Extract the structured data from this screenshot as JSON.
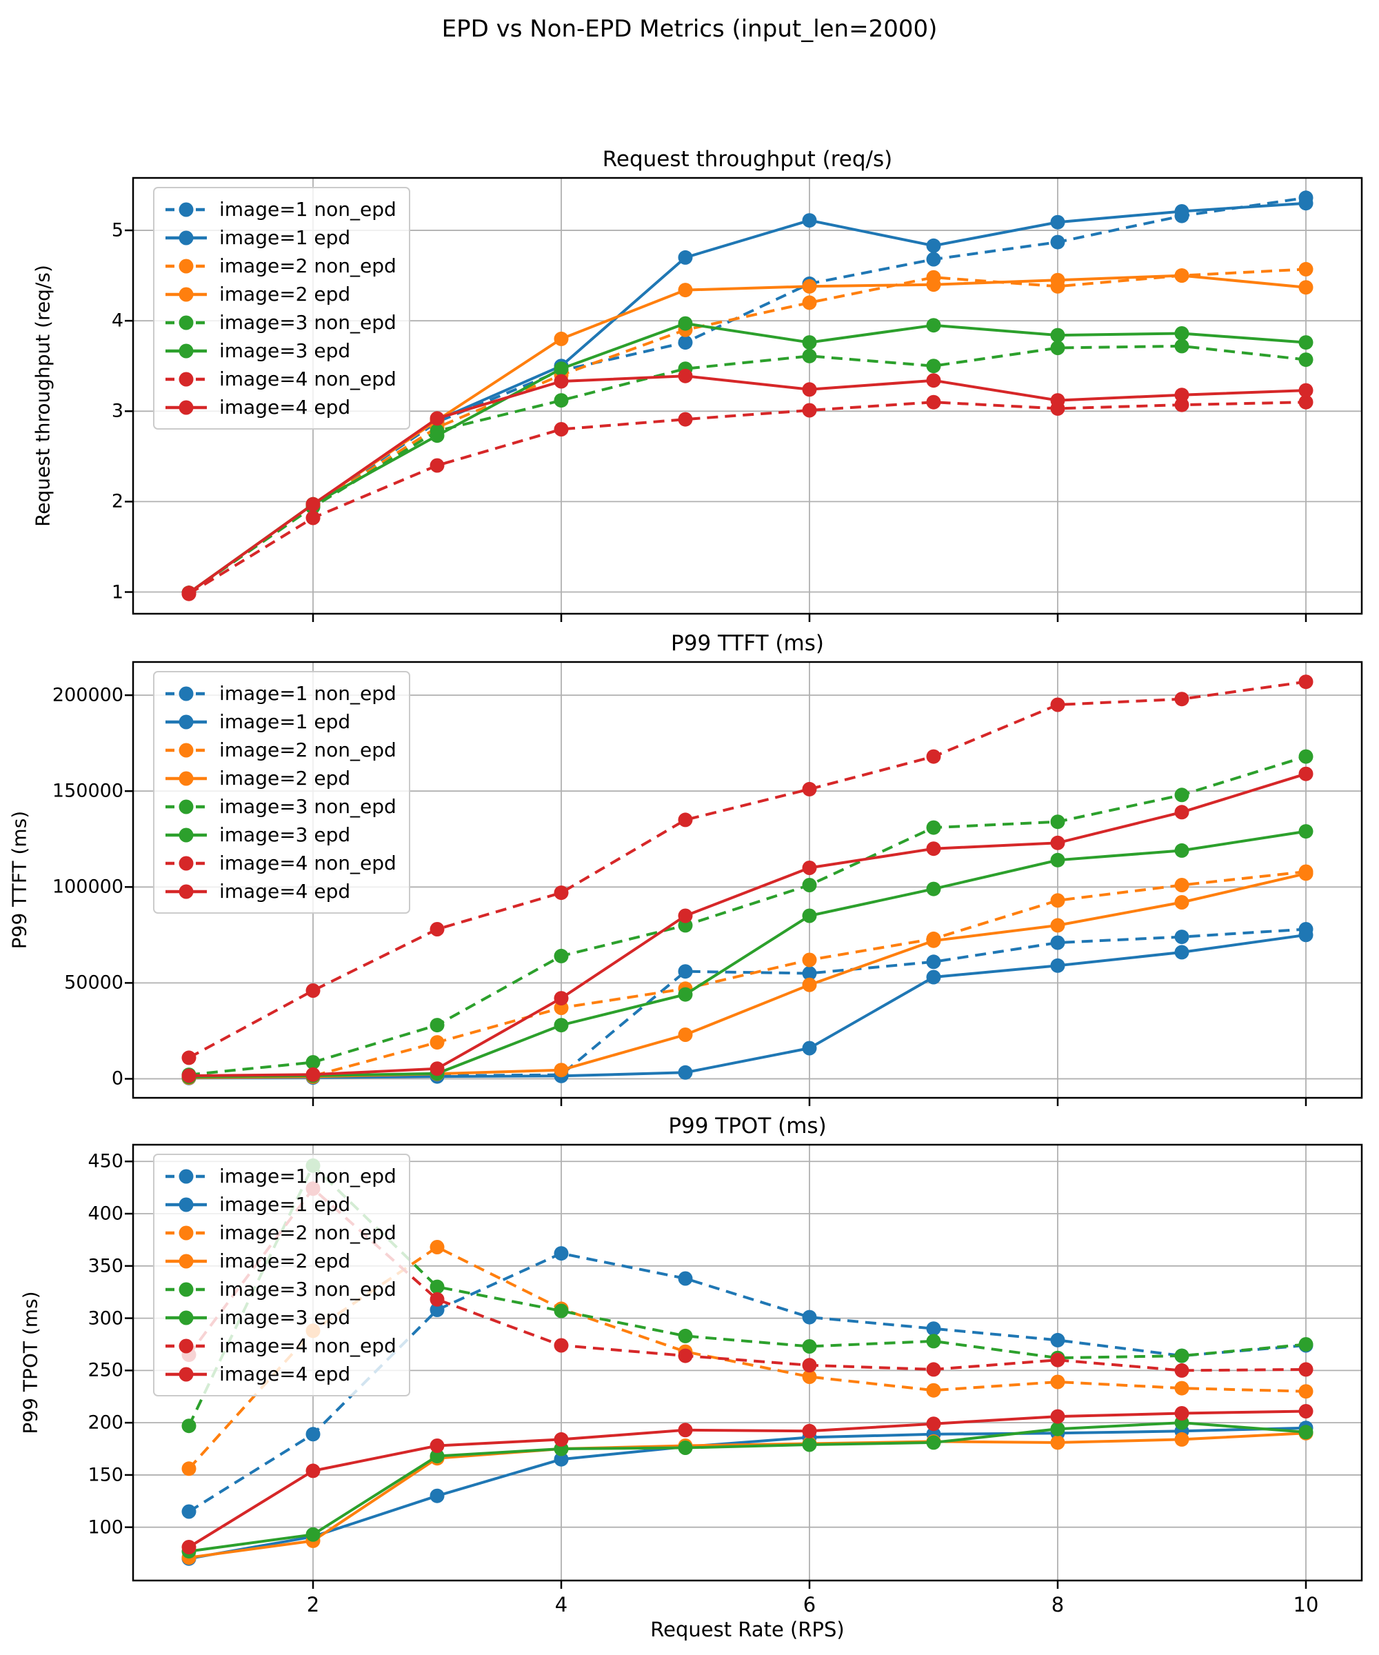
{
  "figure": {
    "suptitle": "EPD vs Non-EPD Metrics (input_len=2000)",
    "xlabel": "Request Rate (RPS)",
    "background": "#ffffff",
    "grid_color": "#b0b0b0",
    "spine_color": "#000000",
    "series_colors": {
      "image1": "#1f77b4",
      "image2": "#ff7f0e",
      "image3": "#2ca02c",
      "image4": "#d62728"
    }
  },
  "chart_data": [
    {
      "type": "line",
      "title": "Request throughput (req/s)",
      "ylabel": "Request throughput (req/s)",
      "x": [
        1,
        2,
        3,
        4,
        5,
        6,
        7,
        8,
        9,
        10
      ],
      "xticks": [
        2,
        4,
        6,
        8,
        10
      ],
      "yticks": [
        1,
        2,
        3,
        4,
        5
      ],
      "xlim": [
        0.55,
        10.45
      ],
      "ylim": [
        0.76,
        5.58
      ],
      "grid": true,
      "legend_position": "upper-left",
      "series": [
        {
          "name": "image=1 non_epd",
          "color": "#1f77b4",
          "dash": "dashed",
          "values": [
            0.99,
            1.96,
            2.88,
            3.45,
            3.76,
            4.41,
            4.68,
            4.87,
            5.16,
            5.36
          ]
        },
        {
          "name": "image=1 epd",
          "color": "#1f77b4",
          "dash": "solid",
          "values": [
            0.99,
            1.97,
            2.9,
            3.5,
            4.7,
            5.11,
            4.83,
            5.09,
            5.21,
            5.3
          ]
        },
        {
          "name": "image=2 non_epd",
          "color": "#ff7f0e",
          "dash": "dashed",
          "values": [
            0.99,
            1.95,
            2.82,
            3.4,
            3.9,
            4.2,
            4.48,
            4.38,
            4.5,
            4.57
          ]
        },
        {
          "name": "image=2 epd",
          "color": "#ff7f0e",
          "dash": "solid",
          "values": [
            0.99,
            1.97,
            2.9,
            3.8,
            4.34,
            4.38,
            4.4,
            4.45,
            4.5,
            4.37
          ]
        },
        {
          "name": "image=3 non_epd",
          "color": "#2ca02c",
          "dash": "dashed",
          "values": [
            0.99,
            1.94,
            2.78,
            3.12,
            3.47,
            3.61,
            3.5,
            3.7,
            3.72,
            3.57
          ]
        },
        {
          "name": "image=3 epd",
          "color": "#2ca02c",
          "dash": "solid",
          "values": [
            0.99,
            1.97,
            2.73,
            3.47,
            3.97,
            3.76,
            3.95,
            3.84,
            3.86,
            3.76
          ]
        },
        {
          "name": "image=4 non_epd",
          "color": "#d62728",
          "dash": "dashed",
          "values": [
            0.98,
            1.82,
            2.4,
            2.8,
            2.91,
            3.01,
            3.1,
            3.03,
            3.07,
            3.1
          ]
        },
        {
          "name": "image=4 epd",
          "color": "#d62728",
          "dash": "solid",
          "values": [
            0.99,
            1.97,
            2.92,
            3.33,
            3.39,
            3.24,
            3.34,
            3.12,
            3.18,
            3.23
          ]
        }
      ]
    },
    {
      "type": "line",
      "title": "P99 TTFT (ms)",
      "ylabel": "P99 TTFT (ms)",
      "x": [
        1,
        2,
        3,
        4,
        5,
        6,
        7,
        8,
        9,
        10
      ],
      "xticks": [
        2,
        4,
        6,
        8,
        10
      ],
      "yticks": [
        0,
        50000,
        100000,
        150000,
        200000
      ],
      "xlim": [
        0.55,
        10.45
      ],
      "ylim": [
        -9900,
        217300
      ],
      "grid": true,
      "legend_position": "upper-left",
      "series": [
        {
          "name": "image=1 non_epd",
          "color": "#1f77b4",
          "dash": "dashed",
          "values": [
            500,
            900,
            1600,
            2100,
            56000,
            55000,
            61000,
            71000,
            74000,
            78000
          ]
        },
        {
          "name": "image=1 epd",
          "color": "#1f77b4",
          "dash": "solid",
          "values": [
            400,
            700,
            1200,
            1500,
            3300,
            16000,
            53000,
            59000,
            66000,
            75000
          ]
        },
        {
          "name": "image=2 non_epd",
          "color": "#ff7f0e",
          "dash": "dashed",
          "values": [
            800,
            1500,
            19000,
            37000,
            47000,
            62000,
            73000,
            93000,
            101000,
            108000
          ]
        },
        {
          "name": "image=2 epd",
          "color": "#ff7f0e",
          "dash": "solid",
          "values": [
            600,
            1100,
            2600,
            4600,
            23000,
            49000,
            72000,
            80000,
            92000,
            107000
          ]
        },
        {
          "name": "image=3 non_epd",
          "color": "#2ca02c",
          "dash": "dashed",
          "values": [
            2100,
            8600,
            28000,
            64000,
            80000,
            101000,
            131000,
            134000,
            148000,
            168000
          ]
        },
        {
          "name": "image=3 epd",
          "color": "#2ca02c",
          "dash": "solid",
          "values": [
            1000,
            1600,
            2800,
            28000,
            44000,
            85000,
            99000,
            114000,
            119000,
            129000
          ]
        },
        {
          "name": "image=4 non_epd",
          "color": "#d62728",
          "dash": "dashed",
          "values": [
            11000,
            46000,
            78000,
            97000,
            135000,
            151000,
            168000,
            195000,
            198000,
            207000
          ]
        },
        {
          "name": "image=4 epd",
          "color": "#d62728",
          "dash": "solid",
          "values": [
            1600,
            2200,
            5300,
            42000,
            85000,
            110000,
            120000,
            123000,
            139000,
            159000
          ]
        }
      ]
    },
    {
      "type": "line",
      "title": "P99 TPOT (ms)",
      "ylabel": "P99 TPOT (ms)",
      "x": [
        1,
        2,
        3,
        4,
        5,
        6,
        7,
        8,
        9,
        10
      ],
      "xticks": [
        2,
        4,
        6,
        8,
        10
      ],
      "yticks": [
        100,
        150,
        200,
        250,
        300,
        350,
        400,
        450
      ],
      "xlim": [
        0.55,
        10.45
      ],
      "ylim": [
        49,
        466
      ],
      "grid": true,
      "legend_position": "upper-left",
      "series": [
        {
          "name": "image=1 non_epd",
          "color": "#1f77b4",
          "dash": "dashed",
          "values": [
            115,
            189,
            308,
            362,
            338,
            301,
            290,
            279,
            264,
            274
          ]
        },
        {
          "name": "image=1 epd",
          "color": "#1f77b4",
          "dash": "solid",
          "values": [
            70,
            91,
            130,
            165,
            177,
            186,
            189,
            190,
            192,
            195
          ]
        },
        {
          "name": "image=2 non_epd",
          "color": "#ff7f0e",
          "dash": "dashed",
          "values": [
            156,
            288,
            368,
            309,
            268,
            244,
            231,
            239,
            233,
            230
          ]
        },
        {
          "name": "image=2 epd",
          "color": "#ff7f0e",
          "dash": "solid",
          "values": [
            71,
            87,
            166,
            175,
            178,
            180,
            182,
            181,
            184,
            190
          ]
        },
        {
          "name": "image=3 non_epd",
          "color": "#2ca02c",
          "dash": "dashed",
          "values": [
            197,
            446,
            330,
            307,
            283,
            273,
            278,
            262,
            264,
            275
          ]
        },
        {
          "name": "image=3 epd",
          "color": "#2ca02c",
          "dash": "solid",
          "values": [
            77,
            93,
            168,
            175,
            176,
            179,
            181,
            194,
            200,
            191
          ]
        },
        {
          "name": "image=4 non_epd",
          "color": "#d62728",
          "dash": "dashed",
          "values": [
            265,
            424,
            318,
            274,
            264,
            255,
            251,
            260,
            250,
            251
          ]
        },
        {
          "name": "image=4 epd",
          "color": "#d62728",
          "dash": "solid",
          "values": [
            81,
            154,
            178,
            184,
            193,
            192,
            199,
            206,
            209,
            211
          ]
        }
      ]
    }
  ]
}
